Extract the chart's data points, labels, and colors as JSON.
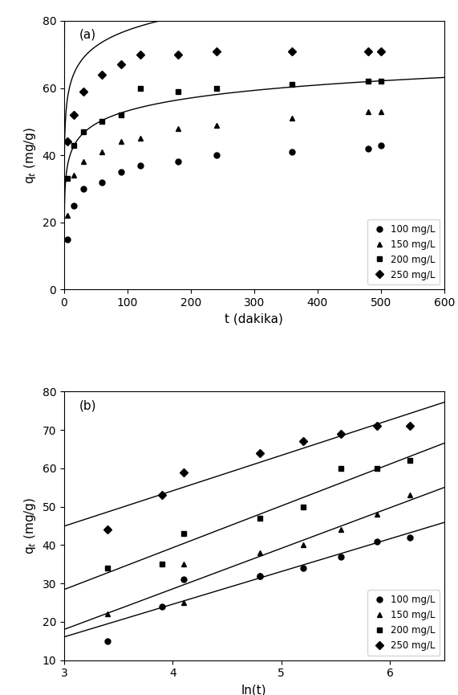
{
  "panel_a": {
    "label": "(a)",
    "xlabel": "t (dakika)",
    "ylabel": "q$_t$ (mg/g)",
    "xlim": [
      0,
      600
    ],
    "ylim": [
      0,
      80
    ],
    "xticks": [
      0,
      100,
      200,
      300,
      400,
      500,
      600
    ],
    "yticks": [
      0,
      20,
      40,
      60,
      80
    ],
    "series": [
      {
        "label": "100 mg/L",
        "marker": "o",
        "t_data": [
          5,
          15,
          30,
          60,
          90,
          120,
          180,
          240,
          360,
          480,
          500
        ],
        "q_data": [
          15,
          25,
          30,
          32,
          35,
          37,
          38,
          40,
          41,
          42,
          43
        ],
        "elovich_alpha": 800.0,
        "elovich_beta": 0.18
      },
      {
        "label": "150 mg/L",
        "marker": "^",
        "t_data": [
          5,
          15,
          30,
          60,
          90,
          120,
          180,
          240,
          360,
          480,
          500
        ],
        "q_data": [
          22,
          34,
          38,
          41,
          44,
          45,
          48,
          49,
          51,
          53,
          53
        ],
        "elovich_alpha": 5000.0,
        "elovich_beta": 0.145
      },
      {
        "label": "200 mg/L",
        "marker": "s",
        "t_data": [
          5,
          15,
          30,
          60,
          90,
          120,
          180,
          240,
          360,
          480,
          500
        ],
        "q_data": [
          33,
          43,
          47,
          50,
          52,
          60,
          59,
          60,
          61,
          62,
          62
        ],
        "elovich_alpha": 200000.0,
        "elovich_beta": 0.12
      },
      {
        "label": "250 mg/L",
        "marker": "D",
        "t_data": [
          5,
          15,
          30,
          60,
          90,
          120,
          180,
          240,
          360,
          480,
          500
        ],
        "q_data": [
          44,
          52,
          59,
          64,
          67,
          70,
          70,
          71,
          71,
          71,
          71
        ],
        "elovich_alpha": 10000000000.0,
        "elovich_beta": 0.1
      }
    ]
  },
  "panel_b": {
    "label": "(b)",
    "xlabel": "ln(t)",
    "ylabel": "q$_t$ (mg/g)",
    "xlim": [
      3.0,
      6.5
    ],
    "ylim": [
      10,
      80
    ],
    "xticks": [
      3,
      4,
      5,
      6
    ],
    "yticks": [
      10,
      20,
      30,
      40,
      50,
      60,
      70,
      80
    ],
    "series": [
      {
        "label": "100 mg/L",
        "marker": "o",
        "lnt_data": [
          3.4,
          3.9,
          4.1,
          4.8,
          4.8,
          5.2,
          5.55,
          5.88,
          6.18
        ],
        "q_data": [
          15,
          24,
          31,
          32,
          32,
          34,
          37,
          41,
          42
        ],
        "slope": 9.3,
        "intercept": -16.5
      },
      {
        "label": "150 mg/L",
        "marker": "^",
        "lnt_data": [
          3.4,
          4.1,
          4.1,
          4.8,
          5.2,
          5.55,
          5.88,
          6.18
        ],
        "q_data": [
          22,
          25,
          35,
          38,
          40,
          44,
          48,
          53
        ],
        "slope": 10.2,
        "intercept": -9.5
      },
      {
        "label": "200 mg/L",
        "marker": "s",
        "lnt_data": [
          3.4,
          3.9,
          4.1,
          4.8,
          5.2,
          5.55,
          5.88,
          6.18
        ],
        "q_data": [
          34,
          35,
          43,
          47,
          50,
          60,
          60,
          62
        ],
        "slope": 10.5,
        "intercept": -1.0
      },
      {
        "label": "250 mg/L",
        "marker": "D",
        "lnt_data": [
          3.4,
          3.9,
          4.1,
          4.8,
          5.2,
          5.55,
          5.88,
          6.18
        ],
        "q_data": [
          44,
          53,
          59,
          64,
          67,
          69,
          71,
          71
        ],
        "slope": 11.5,
        "intercept": 5.5
      }
    ]
  },
  "marker_color": "black",
  "line_color": "black",
  "markersize": 5,
  "linewidth": 1.0
}
